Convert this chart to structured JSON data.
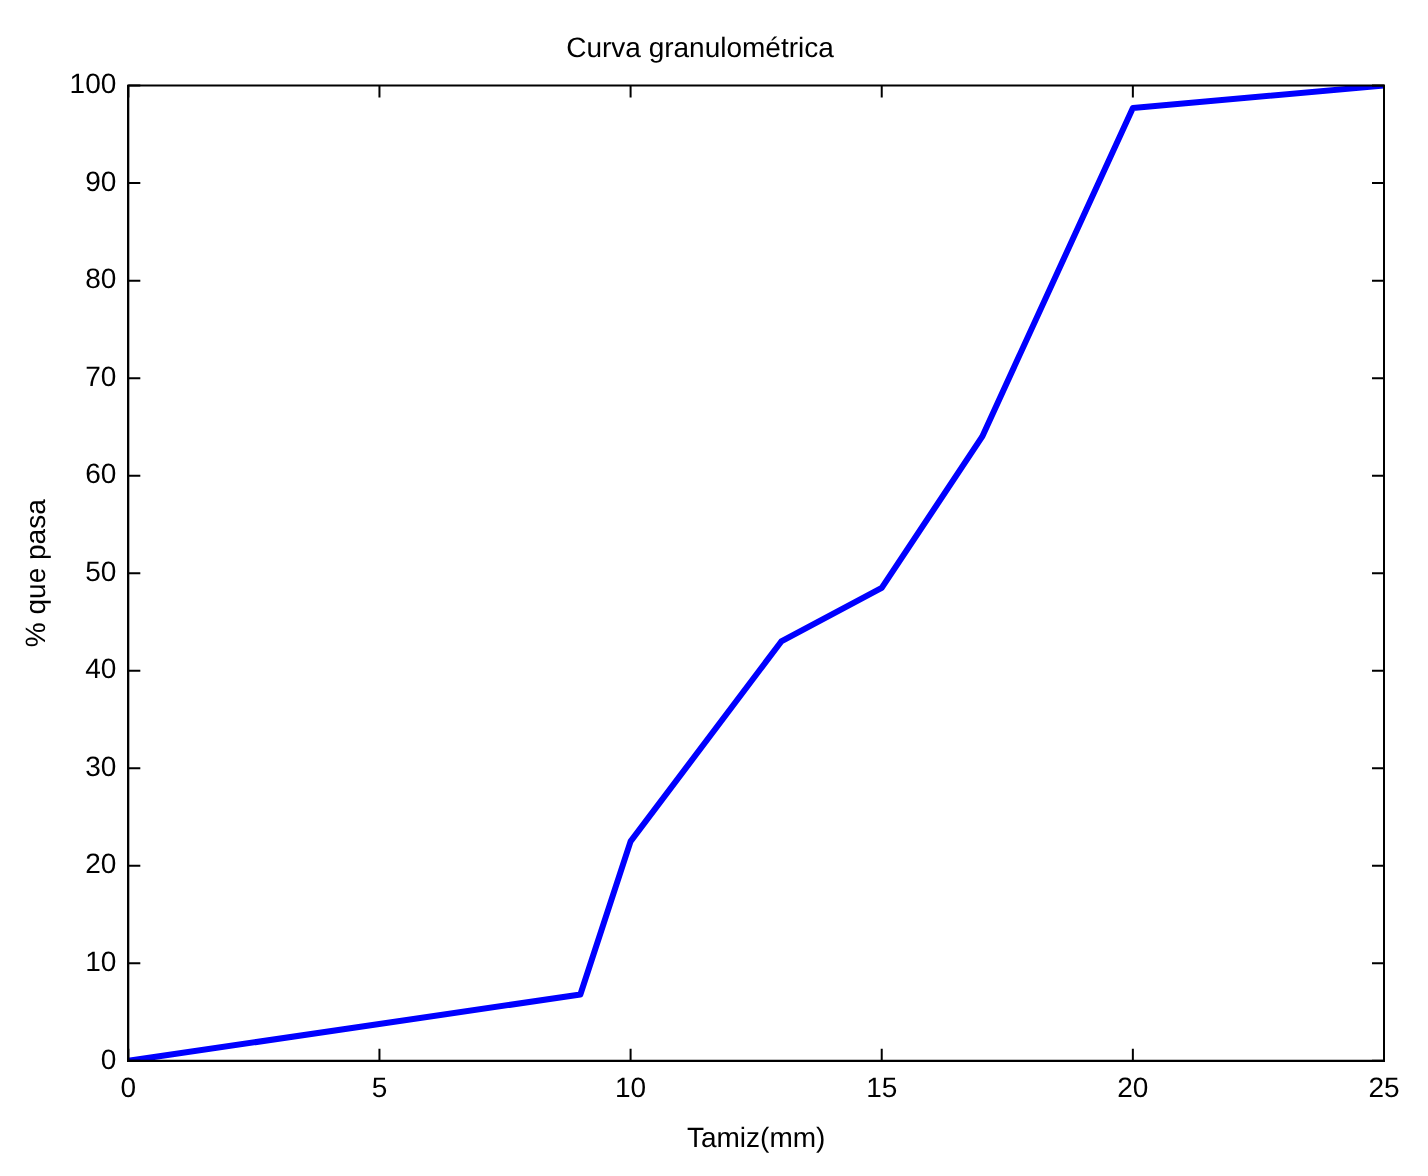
{
  "chart_data": {
    "type": "line",
    "title": "Curva granulométrica",
    "xlabel": "Tamiz(mm)",
    "ylabel": "% que pasa",
    "series": [
      {
        "color": "#0000ff",
        "x": [
          0,
          9,
          10,
          13,
          15,
          17,
          20,
          25
        ],
        "values": [
          0,
          6.8,
          22.5,
          43,
          48.5,
          64,
          97.7,
          100
        ]
      }
    ],
    "xlim": [
      0,
      25
    ],
    "xticks": [
      0,
      5,
      10,
      15,
      20,
      25
    ],
    "ylim": [
      0,
      100
    ],
    "yticks": [
      0,
      10,
      20,
      30,
      40,
      50,
      60,
      70,
      80,
      90,
      100
    ],
    "grid": false,
    "legend": false,
    "marker": "none",
    "line_style": "solid"
  }
}
